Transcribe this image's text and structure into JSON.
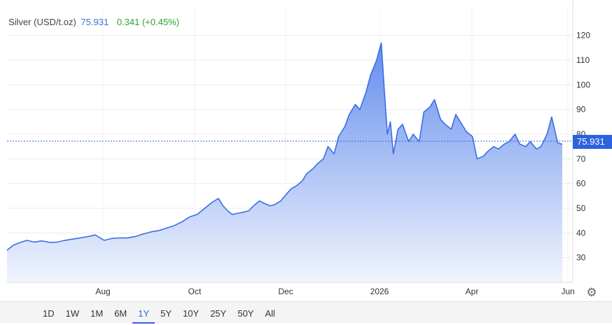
{
  "legend": {
    "name": "Silver (USD/t.oz)",
    "price": "75.931",
    "change": "0.341 (+0.45%)"
  },
  "last_price_tag": "75.931",
  "range_buttons": [
    "1D",
    "1W",
    "1M",
    "6M",
    "1Y",
    "5Y",
    "10Y",
    "25Y",
    "50Y",
    "All"
  ],
  "active_range": "1Y",
  "icons": {
    "settings": "gear-icon"
  },
  "colors": {
    "line": "#3a6ee6",
    "fill_top": "#5b86ec",
    "fill_bottom": "#eef3fd",
    "tag": "#2c62e0",
    "change": "#2aa52a"
  },
  "chart_data": {
    "type": "area",
    "x_tick_labels": [
      "Aug",
      "Oct",
      "Dec",
      "2026",
      "Apr",
      "Jun"
    ],
    "y_tick_labels": [
      "30",
      "40",
      "50",
      "60",
      "70",
      "80",
      "90",
      "100",
      "110",
      "120"
    ],
    "ylim": [
      20,
      125
    ],
    "y_axis_side": "right",
    "grid": true,
    "last_value": 75.931,
    "series": [
      {
        "x": [
          "2025-05-28",
          "2025-06-01",
          "2025-06-05",
          "2025-06-10",
          "2025-06-15",
          "2025-06-20",
          "2025-06-25",
          "2025-06-30",
          "2025-07-05",
          "2025-07-10",
          "2025-07-15",
          "2025-07-20",
          "2025-07-25",
          "2025-07-31",
          "2025-08-05",
          "2025-08-10",
          "2025-08-15",
          "2025-08-20",
          "2025-08-25",
          "2025-08-31",
          "2025-09-05",
          "2025-09-10",
          "2025-09-15",
          "2025-09-20",
          "2025-09-25",
          "2025-09-30",
          "2025-10-05",
          "2025-10-10",
          "2025-10-14",
          "2025-10-17",
          "2025-10-20",
          "2025-10-23",
          "2025-10-27",
          "2025-10-31",
          "2025-11-03",
          "2025-11-06",
          "2025-11-10",
          "2025-11-13",
          "2025-11-17",
          "2025-11-20",
          "2025-11-24",
          "2025-11-28",
          "2025-12-01",
          "2025-12-04",
          "2025-12-08",
          "2025-12-11",
          "2025-12-15",
          "2025-12-18",
          "2025-12-22",
          "2025-12-25",
          "2025-12-29",
          "2026-01-01",
          "2026-01-05",
          "2026-01-08",
          "2026-01-12",
          "2026-01-15",
          "2026-01-19",
          "2026-01-22",
          "2026-01-26",
          "2026-01-29",
          "2026-01-31",
          "2026-02-02",
          "2026-02-04",
          "2026-02-06",
          "2026-02-09",
          "2026-02-12",
          "2026-02-16",
          "2026-02-19",
          "2026-02-23",
          "2026-02-26",
          "2026-03-02",
          "2026-03-05",
          "2026-03-09",
          "2026-03-12",
          "2026-03-16",
          "2026-03-19",
          "2026-03-23",
          "2026-03-26",
          "2026-03-30",
          "2026-04-02",
          "2026-04-06",
          "2026-04-09",
          "2026-04-13",
          "2026-04-16",
          "2026-04-20",
          "2026-04-23",
          "2026-04-27",
          "2026-04-30",
          "2026-05-04",
          "2026-05-07",
          "2026-05-11",
          "2026-05-14",
          "2026-05-18",
          "2026-05-21",
          "2026-05-25",
          "2026-05-28"
        ],
        "values": [
          33.0,
          35.0,
          36.0,
          37.0,
          36.3,
          36.8,
          36.2,
          36.3,
          37.0,
          37.5,
          38.0,
          38.5,
          39.2,
          37.0,
          37.8,
          38.0,
          38.0,
          38.5,
          39.5,
          40.5,
          41.0,
          42.0,
          43.0,
          44.5,
          46.5,
          47.5,
          50.0,
          52.5,
          54.0,
          51.0,
          49.0,
          47.5,
          48.0,
          48.5,
          49.0,
          51.0,
          53.0,
          52.0,
          51.0,
          51.5,
          53.0,
          56.0,
          58.0,
          59.0,
          61.0,
          64.0,
          66.0,
          68.0,
          70.0,
          75.0,
          72.0,
          79.0,
          83.0,
          88.0,
          92.0,
          90.0,
          97.0,
          104.0,
          110.0,
          117.0,
          98.0,
          80.0,
          85.0,
          72.0,
          82.0,
          84.0,
          77.0,
          80.0,
          77.0,
          89.0,
          91.0,
          94.0,
          86.0,
          84.0,
          82.0,
          88.0,
          84.0,
          81.0,
          79.0,
          70.0,
          71.0,
          73.0,
          75.0,
          74.0,
          76.0,
          77.0,
          80.0,
          76.0,
          75.0,
          77.0,
          74.0,
          75.0,
          80.0,
          87.0,
          76.5,
          75.931
        ]
      }
    ]
  }
}
